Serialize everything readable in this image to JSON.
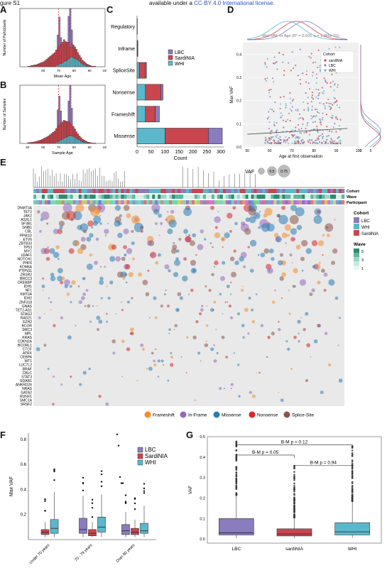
{
  "header": {
    "left": "gure S1",
    "right_pre": "available under a ",
    "right_link": "CC-BY 4.0 International license."
  },
  "panels": {
    "A": "A",
    "B": "B",
    "C": "C",
    "D": "D",
    "E": "E",
    "F": "F",
    "G": "G"
  },
  "colors": {
    "lbc": "#8B7BBF",
    "sardinia": "#C9464F",
    "whi": "#5BB8CC",
    "missense": "#2C7BB6",
    "frameshift": "#F28E2B",
    "inframe": "#9467BD",
    "nonsense": "#D62728",
    "splicesite": "#8C564B"
  },
  "chart_data": [
    {
      "id": "A",
      "type": "bar",
      "xlabel": "Mean Age",
      "ylabel": "Number of Participants",
      "xticks": [
        "60",
        "70",
        "80",
        "90",
        "100"
      ],
      "xlim": [
        45,
        100
      ],
      "vlines": [
        70,
        78
      ],
      "bins_start": 50,
      "bin_width": 1,
      "series": [
        {
          "name": "WHI",
          "values": [
            0,
            0,
            0,
            0,
            0,
            0,
            0,
            0,
            0,
            0,
            0,
            0,
            0,
            0,
            0,
            0,
            0,
            0,
            2,
            3,
            4,
            5,
            6,
            8,
            9,
            10,
            12,
            14,
            15,
            14,
            13,
            12,
            10,
            8,
            6,
            4,
            3,
            2,
            1,
            1,
            0,
            0,
            0,
            0,
            0
          ]
        },
        {
          "name": "SardiNIA",
          "values": [
            1,
            1,
            2,
            2,
            3,
            3,
            4,
            5,
            6,
            7,
            8,
            10,
            12,
            14,
            16,
            18,
            20,
            22,
            24,
            26,
            28,
            30,
            32,
            34,
            30,
            28,
            26,
            24,
            22,
            20,
            18,
            15,
            12,
            10,
            8,
            6,
            5,
            4,
            3,
            2,
            2,
            1,
            1,
            1,
            0
          ]
        },
        {
          "name": "LBC",
          "values": [
            0,
            0,
            0,
            0,
            0,
            0,
            0,
            0,
            0,
            0,
            0,
            0,
            0,
            0,
            0,
            0,
            0,
            0,
            0,
            20,
            45,
            10,
            0,
            0,
            0,
            0,
            40,
            60,
            20,
            0,
            0,
            0,
            0,
            0,
            0,
            0,
            0,
            0,
            0,
            0,
            0,
            0,
            0,
            0,
            0
          ]
        }
      ]
    },
    {
      "id": "B",
      "type": "bar",
      "xlabel": "Sample Age",
      "ylabel": "Number of Samples",
      "xticks": [
        "50",
        "60",
        "70",
        "80",
        "90",
        "100"
      ],
      "xlim": [
        45,
        100
      ],
      "vlines": [
        70,
        78
      ],
      "bins_start": 50,
      "bin_width": 1,
      "series": [
        {
          "name": "WHI",
          "values": [
            0,
            0,
            0,
            0,
            0,
            0,
            0,
            0,
            0,
            0,
            0,
            0,
            0,
            0,
            0,
            0,
            0,
            0,
            3,
            5,
            6,
            8,
            10,
            12,
            14,
            16,
            18,
            19,
            18,
            17,
            15,
            12,
            10,
            8,
            6,
            4,
            3,
            2,
            1,
            1,
            0,
            0,
            0,
            0,
            0
          ]
        },
        {
          "name": "SardiNIA",
          "values": [
            2,
            2,
            3,
            3,
            4,
            5,
            6,
            7,
            8,
            10,
            12,
            14,
            16,
            18,
            21,
            24,
            27,
            30,
            33,
            36,
            38,
            40,
            42,
            44,
            40,
            37,
            34,
            30,
            27,
            24,
            20,
            16,
            13,
            10,
            8,
            6,
            5,
            4,
            3,
            2,
            2,
            1,
            1,
            1,
            0
          ]
        },
        {
          "name": "LBC",
          "values": [
            0,
            0,
            0,
            0,
            0,
            0,
            0,
            0,
            0,
            0,
            0,
            0,
            0,
            0,
            0,
            0,
            0,
            0,
            0,
            40,
            70,
            30,
            0,
            0,
            0,
            0,
            50,
            90,
            40,
            0,
            0,
            0,
            0,
            0,
            0,
            0,
            0,
            0,
            0,
            0,
            0,
            0,
            0,
            0,
            0
          ]
        }
      ]
    },
    {
      "id": "C",
      "type": "bar",
      "orientation": "horizontal",
      "xlabel": "Count",
      "ylabel": "",
      "categories": [
        "Regulatory",
        "Inframe",
        "SpliceSite",
        "Nonsense",
        "Frameshift",
        "Missense"
      ],
      "xticks": [
        "0",
        "50",
        "100",
        "150",
        "200",
        "250",
        "300"
      ],
      "xlim": [
        0,
        310
      ],
      "series": [
        {
          "name": "WHI",
          "values": [
            0,
            0,
            8,
            30,
            30,
            100
          ]
        },
        {
          "name": "SardiNIA",
          "values": [
            0,
            1,
            22,
            55,
            35,
            155
          ]
        },
        {
          "name": "LBC",
          "values": [
            1,
            2,
            4,
            8,
            15,
            50
          ]
        }
      ],
      "legend": [
        "LBC",
        "SardiNIA",
        "WHI"
      ]
    },
    {
      "id": "D",
      "type": "scatter",
      "title": "Max VAF vs Age (R² = 0.003, p = 1.055e-01)",
      "xlabel": "Age at first observation",
      "ylabel": "Max VAF",
      "xticks": [
        "50",
        "60",
        "70",
        "80",
        "90",
        "100"
      ],
      "yticks": [
        "0.0",
        "0.1",
        "0.2",
        "0.3",
        "0.4"
      ],
      "xlim": [
        48,
        100
      ],
      "ylim": [
        0,
        0.45
      ],
      "legend_title": "Cohort",
      "legend": [
        "sardiNIA",
        "LBC",
        "WHI"
      ],
      "side_right_ticks": [
        "0",
        "5"
      ]
    },
    {
      "id": "E",
      "type": "heatmap",
      "track_labels": [
        "Cohort",
        "Wave",
        "Participant"
      ],
      "size_legend_title": "VAF",
      "size_legend": [
        "0.25",
        "0.5",
        "0.75"
      ],
      "genes": [
        "DNMT3A",
        "TET2",
        "JAK2",
        "ASXL1",
        "SF3B1",
        "GNB1",
        "CBL",
        "PPM1D",
        "ETV6",
        "ZBTB33",
        "TP53",
        "MYC",
        "U2AF1",
        "NOTCH1",
        "PHF6",
        "KDM6A",
        "PTPN11",
        "ZRSR2",
        "BRCC3",
        "CREBBP",
        "IDH1",
        "NF1",
        "KMT2A",
        "IDH2",
        "ZNF318",
        "GNAS",
        "TET2-AS1",
        "STAG2",
        "RAD21",
        "EZH2",
        "BCOR",
        "SMC3",
        "MPL",
        "KRAS",
        "CDKN2A",
        "BCORL1",
        "CTCF",
        "ATRX",
        "CEBPA",
        "WT1",
        "LUC7L2",
        "BRAF",
        "CBLC",
        "STAT3",
        "EDAR1",
        "ANKRD26",
        "NRAS",
        "GATA2",
        "RUNX1",
        "SMC1A",
        "SRSF2"
      ],
      "cohort_legend_title": "Cohort",
      "cohort_legend": [
        "LBC",
        "WHI",
        "SardiNIA"
      ],
      "wave_legend_title": "Wave",
      "wave_legend": [
        "5",
        "3",
        "1"
      ],
      "mutation_legend": [
        "Frameshift",
        "In-Frame",
        "Missense",
        "Nonsense",
        "Splice-Site"
      ]
    },
    {
      "id": "F",
      "type": "box",
      "ylabel": "Max VAF",
      "categories": [
        "Under 70 years",
        "70 - 79 years",
        "Over 80 years"
      ],
      "yticks": [
        "0.2",
        "0.4",
        "0.6",
        "0.8"
      ],
      "ylim": [
        0,
        0.85
      ],
      "legend": [
        "LBC",
        "SardiNIA",
        "WHI"
      ],
      "series": [
        {
          "name": "LBC",
          "boxes": [
            null,
            [
              0.02,
              0.05,
              0.08,
              0.17,
              0.35
            ],
            [
              0.02,
              0.04,
              0.07,
              0.12,
              0.22
            ]
          ]
        },
        {
          "name": "SardiNIA",
          "boxes": [
            [
              0.02,
              0.04,
              0.06,
              0.08,
              0.14
            ],
            [
              0.02,
              0.03,
              0.05,
              0.08,
              0.14
            ],
            [
              0.02,
              0.04,
              0.06,
              0.09,
              0.16
            ]
          ]
        },
        {
          "name": "WHI",
          "boxes": [
            [
              0.02,
              0.05,
              0.09,
              0.16,
              0.38
            ],
            [
              0.02,
              0.06,
              0.1,
              0.18,
              0.36
            ],
            [
              0.02,
              0.05,
              0.07,
              0.13,
              0.27
            ]
          ]
        }
      ],
      "outliers": [
        [
          0.84,
          0.75,
          0.5,
          0.45,
          0.45
        ]
      ]
    },
    {
      "id": "G",
      "type": "box",
      "ylabel": "VAF",
      "categories": [
        "LBC",
        "sardiNIA",
        "WHI"
      ],
      "yticks": [
        "0.0",
        "0.1",
        "0.2",
        "0.3",
        "0.4",
        "0.5"
      ],
      "ylim": [
        -0.02,
        0.5
      ],
      "brackets": [
        "B-M p = 0.12",
        "B-M p = 0.05",
        "B-M p = 0.94"
      ],
      "series": [
        {
          "name": "LBC",
          "box": [
            0.005,
            0.02,
            0.03,
            0.1,
            0.21
          ]
        },
        {
          "name": "sardiNIA",
          "box": [
            0.005,
            0.015,
            0.025,
            0.05,
            0.1
          ]
        },
        {
          "name": "WHI",
          "box": [
            0.005,
            0.02,
            0.035,
            0.08,
            0.18
          ]
        }
      ]
    }
  ]
}
